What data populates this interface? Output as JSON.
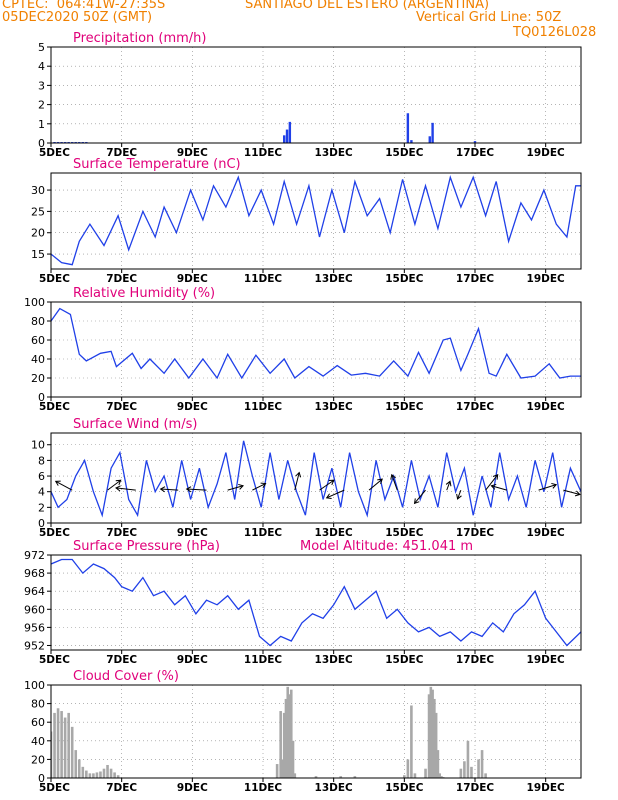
{
  "header": {
    "left_line1": "CPTEC:  064:41W-27:35S",
    "left_line2": "05DEC2020 50Z (GMT)",
    "location": "SANTIAGO DEL ESTERO (ARGENTINA)",
    "grid_note": "Vertical Grid Line: 50Z",
    "code": "TQ0126L028",
    "altitude": "Model Altitude: 451.041 m"
  },
  "colors": {
    "header": "#f08000",
    "title": "#e0007a",
    "line": "#2040e8",
    "cloud": "#a8a8a8",
    "axis": "#000000"
  },
  "x_labels": [
    "5DEC",
    "7DEC",
    "9DEC",
    "11DEC",
    "13DEC",
    "15DEC",
    "17DEC",
    "19DEC"
  ],
  "x_label_values": [
    0,
    2,
    4,
    6,
    8,
    10,
    12,
    14
  ],
  "x_range": [
    0,
    15
  ],
  "chart_data": [
    {
      "id": "precip",
      "type": "bar",
      "title": "Precipitation (mm/h)",
      "ylim": [
        0,
        5
      ],
      "yticks": [
        0,
        1,
        2,
        3,
        4,
        5
      ],
      "grid": true,
      "x": [
        0.1,
        0.2,
        0.3,
        0.4,
        0.5,
        0.6,
        0.7,
        0.8,
        0.9,
        1.0,
        6.6,
        6.68,
        6.76,
        10.1,
        10.2,
        10.72,
        10.8,
        12.0
      ],
      "values": [
        0.05,
        0.05,
        0.05,
        0.05,
        0.05,
        0.05,
        0.05,
        0.05,
        0.05,
        0.05,
        0.4,
        0.7,
        1.1,
        1.55,
        0.15,
        0.35,
        1.05,
        0.1
      ]
    },
    {
      "id": "temp",
      "type": "line",
      "title": "Surface Temperature (nC)",
      "ylim": [
        11.5,
        34
      ],
      "yticks": [
        15,
        20,
        25,
        30
      ],
      "grid": true,
      "x": [
        0,
        0.3,
        0.6,
        0.8,
        1.1,
        1.5,
        1.9,
        2.2,
        2.6,
        2.95,
        3.2,
        3.55,
        3.95,
        4.3,
        4.6,
        4.95,
        5.3,
        5.6,
        5.95,
        6.3,
        6.6,
        6.95,
        7.3,
        7.6,
        7.95,
        8.3,
        8.6,
        8.95,
        9.3,
        9.6,
        9.95,
        10.3,
        10.6,
        10.95,
        11.3,
        11.6,
        11.95,
        12.3,
        12.6,
        12.95,
        13.3,
        13.6,
        13.95,
        14.3,
        14.6,
        14.85,
        15.0
      ],
      "values": [
        15,
        13,
        12.5,
        18,
        22,
        17,
        24,
        16,
        25,
        19,
        26,
        20,
        30,
        23,
        31,
        26,
        33,
        24,
        30,
        22,
        32,
        22,
        31,
        19,
        30,
        20,
        32,
        24,
        28,
        20,
        32.5,
        22,
        31,
        21,
        33,
        26,
        33,
        24,
        32,
        18,
        27,
        23,
        30,
        22,
        19,
        31,
        31
      ]
    },
    {
      "id": "humidity",
      "type": "line",
      "title": "Relative Humidity (%)",
      "ylim": [
        0,
        100
      ],
      "yticks": [
        0,
        20,
        40,
        60,
        80,
        100
      ],
      "grid": true,
      "x": [
        0,
        0.25,
        0.55,
        0.8,
        1.0,
        1.4,
        1.7,
        1.85,
        2.3,
        2.55,
        2.8,
        3.2,
        3.5,
        3.9,
        4.3,
        4.7,
        5.0,
        5.4,
        5.8,
        6.2,
        6.6,
        6.9,
        7.3,
        7.7,
        8.1,
        8.5,
        8.9,
        9.3,
        9.7,
        10.1,
        10.4,
        10.7,
        11.1,
        11.3,
        11.6,
        11.8,
        12.1,
        12.4,
        12.6,
        12.9,
        13.3,
        13.7,
        14.1,
        14.4,
        14.7,
        15.0
      ],
      "values": [
        80,
        93,
        87,
        45,
        38,
        46,
        48,
        32,
        46,
        30,
        40,
        25,
        40,
        20,
        40,
        20,
        45,
        20,
        44,
        25,
        40,
        20,
        32,
        22,
        33,
        23,
        25,
        22,
        38,
        22,
        47,
        25,
        60,
        62,
        28,
        45,
        72,
        25,
        22,
        45,
        20,
        22,
        35,
        20,
        22,
        22
      ]
    },
    {
      "id": "wind",
      "type": "line",
      "title": "Surface Wind (m/s)",
      "ylim": [
        0,
        11.5
      ],
      "yticks": [
        0,
        2,
        4,
        6,
        8,
        10
      ],
      "grid": true,
      "x": [
        0,
        0.2,
        0.45,
        0.7,
        0.95,
        1.2,
        1.45,
        1.7,
        1.95,
        2.2,
        2.45,
        2.7,
        2.95,
        3.2,
        3.45,
        3.7,
        3.95,
        4.2,
        4.45,
        4.7,
        4.95,
        5.2,
        5.45,
        5.7,
        5.95,
        6.2,
        6.45,
        6.7,
        6.95,
        7.2,
        7.45,
        7.7,
        7.95,
        8.2,
        8.45,
        8.7,
        8.95,
        9.2,
        9.45,
        9.7,
        9.95,
        10.2,
        10.45,
        10.7,
        10.95,
        11.2,
        11.45,
        11.7,
        11.95,
        12.2,
        12.45,
        12.7,
        12.95,
        13.2,
        13.45,
        13.7,
        13.95,
        14.2,
        14.45,
        14.7,
        15.0
      ],
      "values": [
        4,
        2,
        3,
        6,
        8,
        4,
        1,
        7,
        9,
        3,
        1,
        8,
        4,
        6,
        2,
        8,
        3,
        7,
        2,
        5,
        9,
        3,
        10.5,
        6,
        2,
        9,
        3,
        8,
        4,
        1,
        9,
        3,
        7,
        2,
        9,
        4,
        1,
        8,
        3,
        6,
        2,
        8,
        3,
        6,
        2,
        9,
        4,
        7,
        1,
        6,
        2,
        9,
        3,
        6,
        2,
        8,
        4,
        9,
        2,
        7,
        4
      ],
      "vectors": [
        {
          "x": 0.6,
          "u": -1.5,
          "v": 0.8
        },
        {
          "x": 1.6,
          "u": 1.2,
          "v": 0.9
        },
        {
          "x": 2.4,
          "u": -1.8,
          "v": 0.2
        },
        {
          "x": 3.6,
          "u": -1.6,
          "v": 0.1
        },
        {
          "x": 4.4,
          "u": -1.8,
          "v": 0.1
        },
        {
          "x": 5.0,
          "u": 1.4,
          "v": 0.4
        },
        {
          "x": 5.7,
          "u": 1.2,
          "v": 0.6
        },
        {
          "x": 6.9,
          "u": 0.4,
          "v": 1.6
        },
        {
          "x": 7.6,
          "u": 1.3,
          "v": 0.9
        },
        {
          "x": 8.3,
          "u": -1.6,
          "v": -0.7
        },
        {
          "x": 9.0,
          "u": 1.2,
          "v": 1.0
        },
        {
          "x": 9.8,
          "u": -0.5,
          "v": 1.4
        },
        {
          "x": 10.6,
          "u": -1.0,
          "v": -1.2
        },
        {
          "x": 11.2,
          "u": 0.3,
          "v": 0.8
        },
        {
          "x": 11.6,
          "u": -0.3,
          "v": -0.8
        },
        {
          "x": 12.3,
          "u": 1.1,
          "v": 1.4
        },
        {
          "x": 12.9,
          "u": -1.4,
          "v": 0.4
        },
        {
          "x": 13.8,
          "u": 1.6,
          "v": 0.5
        },
        {
          "x": 14.5,
          "u": 1.5,
          "v": -0.4
        }
      ]
    },
    {
      "id": "pressure",
      "type": "line",
      "title": "Surface Pressure (hPa)",
      "ylim": [
        951,
        972
      ],
      "yticks": [
        952,
        956,
        960,
        964,
        968,
        972
      ],
      "grid": true,
      "x": [
        0,
        0.3,
        0.6,
        0.9,
        1.2,
        1.5,
        1.8,
        2.0,
        2.3,
        2.6,
        2.9,
        3.2,
        3.5,
        3.8,
        4.1,
        4.4,
        4.7,
        5.0,
        5.3,
        5.6,
        5.9,
        6.2,
        6.5,
        6.8,
        7.1,
        7.4,
        7.7,
        8.0,
        8.3,
        8.6,
        8.9,
        9.2,
        9.5,
        9.8,
        10.1,
        10.4,
        10.7,
        11.0,
        11.3,
        11.6,
        11.9,
        12.2,
        12.5,
        12.8,
        13.1,
        13.4,
        13.7,
        14.0,
        14.3,
        14.6,
        15.0
      ],
      "values": [
        970,
        971,
        971,
        968,
        970,
        969,
        967,
        965,
        964,
        967,
        963,
        964,
        961,
        963,
        959,
        962,
        961,
        963,
        960,
        962,
        954,
        952,
        954,
        953,
        957,
        959,
        958,
        961,
        965,
        960,
        962,
        964,
        958,
        960,
        957,
        955,
        956,
        954,
        955,
        953,
        955,
        954,
        957,
        955,
        959,
        961,
        964,
        958,
        955,
        952,
        955
      ]
    },
    {
      "id": "cloud",
      "type": "area",
      "title": "Cloud Cover (%)",
      "ylim": [
        0,
        100
      ],
      "yticks": [
        0,
        20,
        40,
        60,
        80,
        100
      ],
      "grid": true,
      "x": [
        0.0,
        0.1,
        0.2,
        0.3,
        0.4,
        0.5,
        0.6,
        0.7,
        0.8,
        0.9,
        1.0,
        1.1,
        1.2,
        1.3,
        1.4,
        1.5,
        1.6,
        1.7,
        1.8,
        1.9,
        2.0,
        6.4,
        6.5,
        6.55,
        6.6,
        6.65,
        6.7,
        6.75,
        6.8,
        6.85,
        6.9,
        7.5,
        8.2,
        8.6,
        10.0,
        10.1,
        10.2,
        10.3,
        10.6,
        10.7,
        10.75,
        10.8,
        10.85,
        10.9,
        10.95,
        11.0,
        11.05,
        11.1,
        11.6,
        11.7,
        11.8,
        11.9,
        12.1,
        12.2,
        12.3
      ],
      "values": [
        50,
        70,
        75,
        72,
        65,
        70,
        55,
        30,
        20,
        12,
        8,
        5,
        5,
        6,
        7,
        10,
        14,
        10,
        6,
        3,
        0,
        15,
        72,
        20,
        70,
        85,
        98,
        90,
        95,
        40,
        5,
        2,
        2,
        2,
        3,
        20,
        78,
        5,
        10,
        90,
        98,
        95,
        85,
        70,
        30,
        5,
        2,
        1,
        10,
        18,
        40,
        12,
        20,
        30,
        5
      ]
    }
  ]
}
